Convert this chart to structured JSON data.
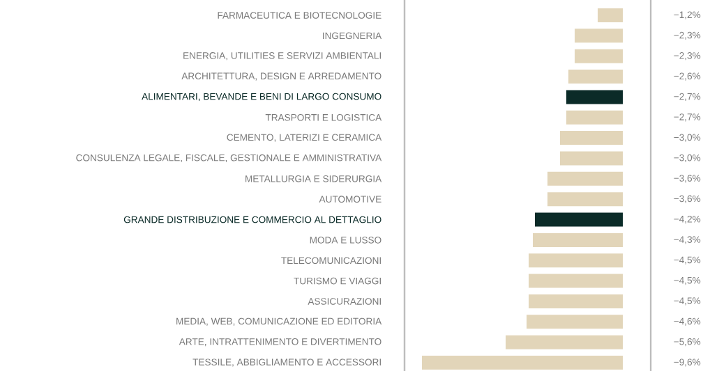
{
  "chart_data": {
    "type": "bar",
    "orientation": "horizontal",
    "categories": [
      "FARMACEUTICA E BIOTECNOLOGIE",
      "INGEGNERIA",
      "ENERGIA, UTILITIES E SERVIZI AMBIENTALI",
      "ARCHITETTURA, DESIGN E ARREDAMENTO",
      "ALIMENTARI, BEVANDE E BENI DI LARGO CONSUMO",
      "TRASPORTI E LOGISTICA",
      "CEMENTO, LATERIZI E CERAMICA",
      "CONSULENZA LEGALE, FISCALE, GESTIONALE E AMMINISTRATIVA",
      "METALLURGIA E SIDERURGIA",
      "AUTOMOTIVE",
      "GRANDE DISTRIBUZIONE E COMMERCIO AL DETTAGLIO",
      "MODA E LUSSO",
      "TELECOMUNICAZIONI",
      "TURISMO E VIAGGI",
      "ASSICURAZIONI",
      "MEDIA, WEB, COMUNICAZIONE ED EDITORIA",
      "ARTE, INTRATTENIMENTO E DIVERTIMENTO",
      "TESSILE, ABBIGLIAMENTO E ACCESSORI"
    ],
    "values": [
      -1.2,
      -2.3,
      -2.3,
      -2.6,
      -2.7,
      -2.7,
      -3.0,
      -3.0,
      -3.6,
      -3.6,
      -4.2,
      -4.3,
      -4.5,
      -4.5,
      -4.5,
      -4.6,
      -5.6,
      -9.6
    ],
    "value_labels": [
      "−1,2%",
      "−2,3%",
      "−2,3%",
      "−2,6%",
      "−2,7%",
      "−2,7%",
      "−3,0%",
      "−3,0%",
      "−3,6%",
      "−3,6%",
      "−4,2%",
      "−4,3%",
      "−4,5%",
      "−4,5%",
      "−4,5%",
      "−4,6%",
      "−5,6%",
      "−9,6%"
    ],
    "colors": [
      "#e2d5b9",
      "#e2d5b9",
      "#e2d5b9",
      "#e2d5b9",
      "#0b2b28",
      "#e2d5b9",
      "#e2d5b9",
      "#e2d5b9",
      "#e2d5b9",
      "#e2d5b9",
      "#0b2b28",
      "#e2d5b9",
      "#e2d5b9",
      "#e2d5b9",
      "#e2d5b9",
      "#e2d5b9",
      "#e2d5b9",
      "#e2d5b9"
    ]
  }
}
